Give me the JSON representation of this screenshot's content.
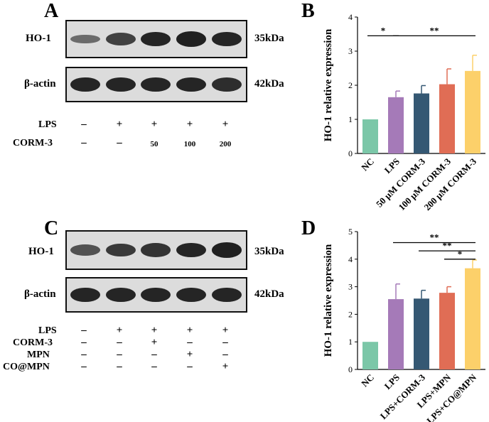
{
  "panel_a": {
    "letter": "A",
    "rows": [
      {
        "label": "HO-1",
        "kda": "35kDa"
      },
      {
        "label": "β-actin",
        "kda": "42kDa"
      }
    ],
    "treatments": [
      {
        "label": "LPS",
        "values": [
          "–",
          "+",
          "+",
          "+",
          "+"
        ]
      },
      {
        "label": "CORM-3",
        "values": [
          "–",
          "–",
          "50",
          "100",
          "200"
        ]
      }
    ],
    "ho1_band_intensity": [
      0.35,
      0.7,
      0.9,
      0.95,
      0.9
    ],
    "actin_band_intensity": [
      0.9,
      0.9,
      0.9,
      0.9,
      0.85
    ]
  },
  "panel_c": {
    "letter": "C",
    "rows": [
      {
        "label": "HO-1",
        "kda": "35kDa"
      },
      {
        "label": "β-actin",
        "kda": "42kDa"
      }
    ],
    "treatments": [
      {
        "label": "LPS",
        "values": [
          "–",
          "+",
          "+",
          "+",
          "+"
        ]
      },
      {
        "label": "CORM-3",
        "values": [
          "–",
          "–",
          "+",
          "–",
          "–"
        ]
      },
      {
        "label": "MPN",
        "values": [
          "–",
          "–",
          "–",
          "+",
          "–"
        ]
      },
      {
        "label": "CO@MPN",
        "values": [
          "–",
          "–",
          "–",
          "–",
          "+"
        ]
      }
    ],
    "ho1_band_intensity": [
      0.55,
      0.75,
      0.8,
      0.9,
      0.95
    ],
    "actin_band_intensity": [
      0.9,
      0.9,
      0.9,
      0.9,
      0.9
    ]
  },
  "chart_data": [
    {
      "panel": "B",
      "type": "bar",
      "ylabel": "HO-1 relative expression",
      "ylim": [
        0,
        4
      ],
      "yticks": [
        "0",
        "1",
        "2",
        "3",
        "4"
      ],
      "categories": [
        "NC",
        "LPS",
        "50 μM CORM-3",
        "100 μM CORM-3",
        "200 μM CORM-3"
      ],
      "values": [
        1.0,
        1.65,
        1.76,
        2.03,
        2.42
      ],
      "errors": [
        0.0,
        0.18,
        0.23,
        0.45,
        0.46
      ],
      "colors": [
        "#7bc7a8",
        "#a57ab8",
        "#355873",
        "#e06d55",
        "#fcd06a"
      ],
      "significance": [
        {
          "from": 0,
          "to": 1,
          "label": "*",
          "level": 3.45
        },
        {
          "from": 1,
          "to": 4,
          "label": "**",
          "level": 3.45
        }
      ]
    },
    {
      "panel": "D",
      "type": "bar",
      "ylabel": "HO-1 relative expression",
      "ylim": [
        0,
        5
      ],
      "yticks": [
        "0",
        "1",
        "2",
        "3",
        "4",
        "5"
      ],
      "categories": [
        "NC",
        "LPS",
        "LPS+CORM-3",
        "LPS+MPN",
        "LPS+CO@MPN"
      ],
      "values": [
        1.0,
        2.55,
        2.57,
        2.78,
        3.67
      ],
      "errors": [
        0.0,
        0.55,
        0.3,
        0.22,
        0.3
      ],
      "colors": [
        "#7bc7a8",
        "#a57ab8",
        "#355873",
        "#e06d55",
        "#fcd06a"
      ],
      "significance": [
        {
          "from": 1,
          "to": 4,
          "label": "**",
          "level": 4.6
        },
        {
          "from": 2,
          "to": 4,
          "label": "**",
          "level": 4.3
        },
        {
          "from": 3,
          "to": 4,
          "label": "*",
          "level": 4.0
        }
      ]
    }
  ]
}
